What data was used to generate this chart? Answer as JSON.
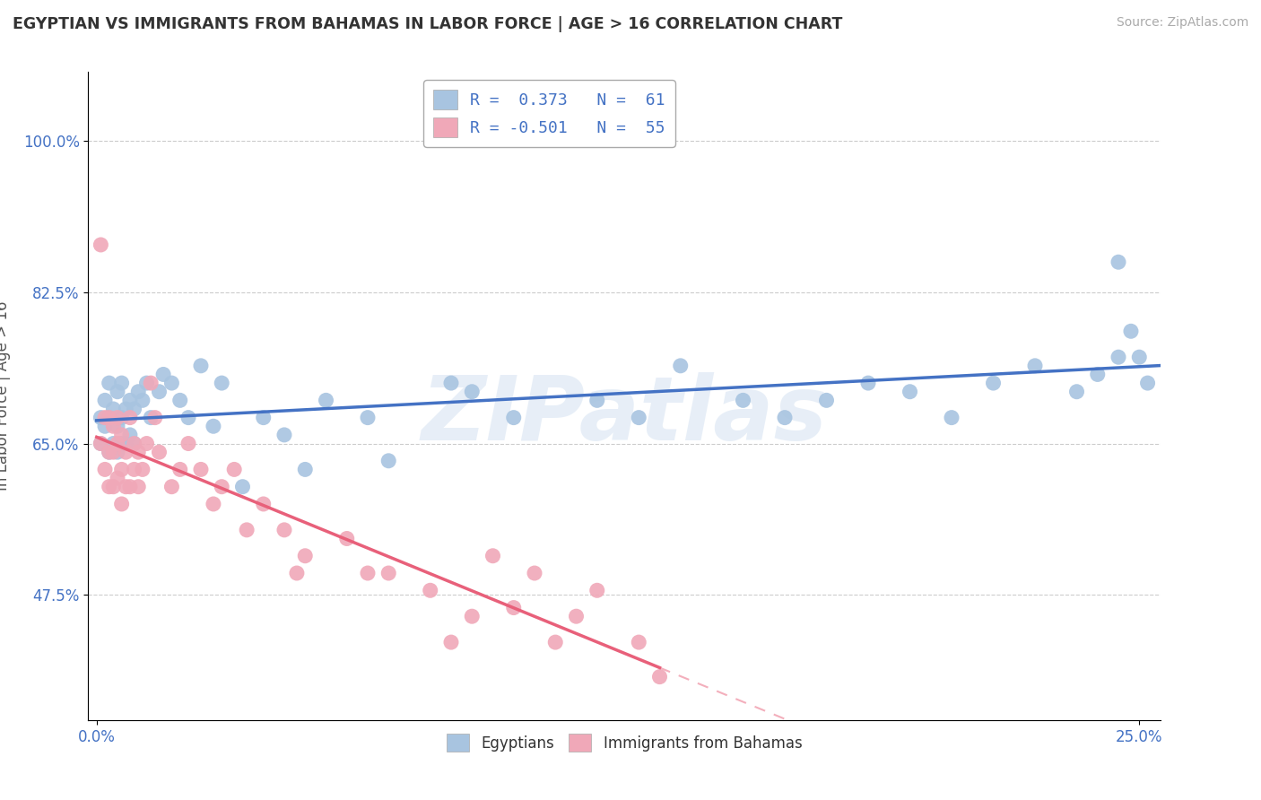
{
  "title": "EGYPTIAN VS IMMIGRANTS FROM BAHAMAS IN LABOR FORCE | AGE > 16 CORRELATION CHART",
  "source": "Source: ZipAtlas.com",
  "ylabel": "In Labor Force | Age > 16",
  "blue_R": 0.373,
  "blue_N": 61,
  "pink_R": -0.501,
  "pink_N": 55,
  "xlim": [
    -0.002,
    0.255
  ],
  "ylim": [
    0.33,
    1.08
  ],
  "yticks": [
    0.475,
    0.65,
    0.825,
    1.0
  ],
  "ytick_labels": [
    "47.5%",
    "65.0%",
    "82.5%",
    "100.0%"
  ],
  "xticks": [
    0.0,
    0.25
  ],
  "xtick_labels": [
    "0.0%",
    "25.0%"
  ],
  "blue_color": "#a8c4e0",
  "pink_color": "#f0a8b8",
  "blue_line_color": "#4472c4",
  "pink_line_color": "#e8607a",
  "legend1": "Egyptians",
  "legend2": "Immigrants from Bahamas",
  "watermark": "ZIPatlas",
  "blue_x": [
    0.001,
    0.001,
    0.002,
    0.002,
    0.003,
    0.003,
    0.003,
    0.004,
    0.004,
    0.005,
    0.005,
    0.005,
    0.006,
    0.006,
    0.006,
    0.007,
    0.007,
    0.008,
    0.008,
    0.009,
    0.009,
    0.01,
    0.011,
    0.012,
    0.013,
    0.015,
    0.016,
    0.018,
    0.02,
    0.022,
    0.025,
    0.028,
    0.03,
    0.035,
    0.04,
    0.045,
    0.05,
    0.055,
    0.065,
    0.07,
    0.085,
    0.09,
    0.1,
    0.12,
    0.13,
    0.14,
    0.155,
    0.165,
    0.175,
    0.185,
    0.195,
    0.205,
    0.215,
    0.225,
    0.235,
    0.24,
    0.245,
    0.245,
    0.248,
    0.25,
    0.252
  ],
  "blue_y": [
    0.68,
    0.65,
    0.7,
    0.67,
    0.64,
    0.68,
    0.72,
    0.65,
    0.69,
    0.64,
    0.67,
    0.71,
    0.65,
    0.68,
    0.72,
    0.65,
    0.69,
    0.66,
    0.7,
    0.65,
    0.69,
    0.71,
    0.7,
    0.72,
    0.68,
    0.71,
    0.73,
    0.72,
    0.7,
    0.68,
    0.74,
    0.67,
    0.72,
    0.6,
    0.68,
    0.66,
    0.62,
    0.7,
    0.68,
    0.63,
    0.72,
    0.71,
    0.68,
    0.7,
    0.68,
    0.74,
    0.7,
    0.68,
    0.7,
    0.72,
    0.71,
    0.68,
    0.72,
    0.74,
    0.71,
    0.73,
    0.75,
    0.86,
    0.78,
    0.75,
    0.72
  ],
  "pink_x": [
    0.001,
    0.001,
    0.002,
    0.002,
    0.003,
    0.003,
    0.003,
    0.004,
    0.004,
    0.004,
    0.005,
    0.005,
    0.005,
    0.006,
    0.006,
    0.006,
    0.007,
    0.007,
    0.008,
    0.008,
    0.009,
    0.009,
    0.01,
    0.01,
    0.011,
    0.012,
    0.013,
    0.014,
    0.015,
    0.018,
    0.02,
    0.022,
    0.025,
    0.028,
    0.03,
    0.033,
    0.036,
    0.04,
    0.045,
    0.048,
    0.05,
    0.06,
    0.065,
    0.07,
    0.08,
    0.085,
    0.09,
    0.095,
    0.1,
    0.105,
    0.11,
    0.115,
    0.12,
    0.13,
    0.135
  ],
  "pink_y": [
    0.88,
    0.65,
    0.68,
    0.62,
    0.68,
    0.64,
    0.6,
    0.67,
    0.64,
    0.6,
    0.68,
    0.65,
    0.61,
    0.66,
    0.62,
    0.58,
    0.64,
    0.6,
    0.68,
    0.6,
    0.65,
    0.62,
    0.64,
    0.6,
    0.62,
    0.65,
    0.72,
    0.68,
    0.64,
    0.6,
    0.62,
    0.65,
    0.62,
    0.58,
    0.6,
    0.62,
    0.55,
    0.58,
    0.55,
    0.5,
    0.52,
    0.54,
    0.5,
    0.5,
    0.48,
    0.42,
    0.45,
    0.52,
    0.46,
    0.5,
    0.42,
    0.45,
    0.48,
    0.42,
    0.38
  ]
}
